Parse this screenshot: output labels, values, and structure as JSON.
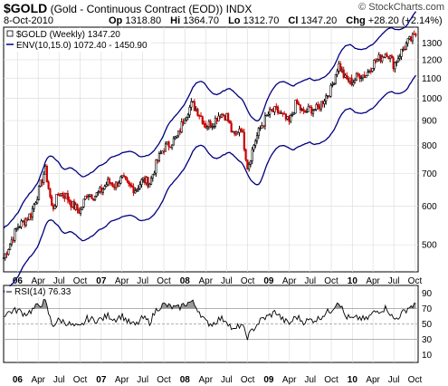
{
  "header": {
    "symbol": "$GOLD",
    "description": "(Gold - Continuous Contract (EOD))",
    "exchange": "INDX",
    "date": "8-Oct-2010",
    "open_label": "Op",
    "open": "1318.80",
    "high_label": "Hi",
    "high": "1364.70",
    "low_label": "Lo",
    "low": "1312.70",
    "close_label": "Cl",
    "close": "1347.20",
    "change_label": "Chg",
    "change": "+28.20 (+2.14%)",
    "brand": "© StockCharts.com"
  },
  "colors": {
    "up": "#000000",
    "down": "#cc0000",
    "envelope": "#000080",
    "rsi": "#000000",
    "rsi_fill": "#808080"
  },
  "chart_data": [
    {
      "type": "candlestick",
      "title": "$GOLD (Weekly) 1347.20",
      "legend": [
        {
          "name": "$GOLD (Weekly) 1347.20",
          "style": "candles"
        },
        {
          "name": "ENV(10,15.0) 1072.40 - 1450.90",
          "style": "line"
        }
      ],
      "scale": "log",
      "ylim": [
        440,
        1400
      ],
      "yticks": [
        500,
        600,
        700,
        800,
        900,
        1000,
        1100,
        1200,
        1300
      ],
      "xticks": [
        "06",
        "Apr",
        "Jul",
        "Oct",
        "07",
        "Apr",
        "Jul",
        "Oct",
        "08",
        "Apr",
        "Jul",
        "Oct",
        "09",
        "Apr",
        "Jul",
        "Oct",
        "10",
        "Apr",
        "Jul",
        "Oct"
      ],
      "xlim": [
        "2005-11-01",
        "2010-10-15"
      ],
      "close_series": [
        [
          "2005-11-01",
          470
        ],
        [
          "2005-12-01",
          505
        ],
        [
          "2006-01-01",
          545
        ],
        [
          "2006-02-01",
          560
        ],
        [
          "2006-03-01",
          580
        ],
        [
          "2006-04-01",
          640
        ],
        [
          "2006-05-01",
          715
        ],
        [
          "2006-06-01",
          590
        ],
        [
          "2006-07-01",
          640
        ],
        [
          "2006-08-01",
          630
        ],
        [
          "2006-09-01",
          600
        ],
        [
          "2006-10-01",
          585
        ],
        [
          "2006-11-01",
          640
        ],
        [
          "2006-12-01",
          630
        ],
        [
          "2007-01-01",
          645
        ],
        [
          "2007-02-01",
          675
        ],
        [
          "2007-03-01",
          662
        ],
        [
          "2007-04-01",
          685
        ],
        [
          "2007-05-01",
          660
        ],
        [
          "2007-06-01",
          650
        ],
        [
          "2007-07-01",
          680
        ],
        [
          "2007-08-01",
          670
        ],
        [
          "2007-09-01",
          740
        ],
        [
          "2007-10-01",
          790
        ],
        [
          "2007-11-01",
          810
        ],
        [
          "2007-12-01",
          835
        ],
        [
          "2008-01-01",
          920
        ],
        [
          "2008-02-01",
          975
        ],
        [
          "2008-03-01",
          935
        ],
        [
          "2008-04-01",
          880
        ],
        [
          "2008-05-01",
          890
        ],
        [
          "2008-06-01",
          930
        ],
        [
          "2008-07-01",
          920
        ],
        [
          "2008-08-01",
          830
        ],
        [
          "2008-09-01",
          880
        ],
        [
          "2008-10-01",
          720
        ],
        [
          "2008-11-01",
          815
        ],
        [
          "2008-12-01",
          880
        ],
        [
          "2009-01-01",
          930
        ],
        [
          "2009-02-01",
          945
        ],
        [
          "2009-03-01",
          920
        ],
        [
          "2009-04-01",
          890
        ],
        [
          "2009-05-01",
          980
        ],
        [
          "2009-06-01",
          930
        ],
        [
          "2009-07-01",
          950
        ],
        [
          "2009-08-01",
          950
        ],
        [
          "2009-09-01",
          1000
        ],
        [
          "2009-10-01",
          1045
        ],
        [
          "2009-11-01",
          1175
        ],
        [
          "2009-12-01",
          1095
        ],
        [
          "2010-01-01",
          1080
        ],
        [
          "2010-02-01",
          1120
        ],
        [
          "2010-03-01",
          1115
        ],
        [
          "2010-04-01",
          1180
        ],
        [
          "2010-05-01",
          1210
        ],
        [
          "2010-06-01",
          1245
        ],
        [
          "2010-07-01",
          1170
        ],
        [
          "2010-08-01",
          1245
        ],
        [
          "2010-09-01",
          1305
        ],
        [
          "2010-10-08",
          1347.2
        ]
      ],
      "envelope": {
        "name": "ENV(10,15.0) 1072.40 - 1450.90",
        "upper_last": 1450.9,
        "lower_last": 1072.4
      }
    },
    {
      "type": "line",
      "title": "RSI(14) 76.33",
      "legend": [
        {
          "name": "RSI(14) 76.33"
        }
      ],
      "ylim": [
        0,
        100
      ],
      "yticks": [
        10,
        30,
        50,
        70,
        90
      ],
      "reference_lines": [
        30,
        50,
        70
      ],
      "xticks": [
        "06",
        "Apr",
        "Jul",
        "Oct",
        "07",
        "Apr",
        "Jul",
        "Oct",
        "08",
        "Apr",
        "Jul",
        "Oct",
        "09",
        "Apr",
        "Jul",
        "Oct",
        "10",
        "Apr",
        "Jul",
        "Oct"
      ],
      "series": [
        {
          "name": "RSI(14)",
          "points": [
            [
              "2005-11-01",
              62
            ],
            [
              "2005-12-01",
              66
            ],
            [
              "2006-01-01",
              68
            ],
            [
              "2006-02-01",
              63
            ],
            [
              "2006-03-01",
              67
            ],
            [
              "2006-04-01",
              74
            ],
            [
              "2006-05-01",
              79
            ],
            [
              "2006-06-01",
              48
            ],
            [
              "2006-07-01",
              55
            ],
            [
              "2006-08-01",
              52
            ],
            [
              "2006-09-01",
              47
            ],
            [
              "2006-10-01",
              45
            ],
            [
              "2006-11-01",
              57
            ],
            [
              "2006-12-01",
              55
            ],
            [
              "2007-01-01",
              56
            ],
            [
              "2007-02-01",
              61
            ],
            [
              "2007-03-01",
              56
            ],
            [
              "2007-04-01",
              61
            ],
            [
              "2007-05-01",
              52
            ],
            [
              "2007-06-01",
              48
            ],
            [
              "2007-07-01",
              58
            ],
            [
              "2007-08-01",
              52
            ],
            [
              "2007-09-01",
              70
            ],
            [
              "2007-10-01",
              75
            ],
            [
              "2007-11-01",
              72
            ],
            [
              "2007-12-01",
              70
            ],
            [
              "2008-01-01",
              76
            ],
            [
              "2008-02-01",
              79
            ],
            [
              "2008-03-01",
              68
            ],
            [
              "2008-04-01",
              52
            ],
            [
              "2008-05-01",
              50
            ],
            [
              "2008-06-01",
              57
            ],
            [
              "2008-07-01",
              55
            ],
            [
              "2008-08-01",
              40
            ],
            [
              "2008-09-01",
              50
            ],
            [
              "2008-10-01",
              33
            ],
            [
              "2008-11-01",
              46
            ],
            [
              "2008-12-01",
              56
            ],
            [
              "2009-01-01",
              60
            ],
            [
              "2009-02-01",
              66
            ],
            [
              "2009-03-01",
              56
            ],
            [
              "2009-04-01",
              50
            ],
            [
              "2009-05-01",
              60
            ],
            [
              "2009-06-01",
              53
            ],
            [
              "2009-07-01",
              55
            ],
            [
              "2009-08-01",
              56
            ],
            [
              "2009-09-01",
              63
            ],
            [
              "2009-10-01",
              68
            ],
            [
              "2009-11-01",
              81
            ],
            [
              "2009-12-01",
              60
            ],
            [
              "2010-01-01",
              56
            ],
            [
              "2010-02-01",
              58
            ],
            [
              "2010-03-01",
              55
            ],
            [
              "2010-04-01",
              64
            ],
            [
              "2010-05-01",
              68
            ],
            [
              "2010-06-01",
              71
            ],
            [
              "2010-07-01",
              55
            ],
            [
              "2010-08-01",
              62
            ],
            [
              "2010-09-01",
              71
            ],
            [
              "2010-10-08",
              76.33
            ]
          ]
        }
      ]
    }
  ]
}
